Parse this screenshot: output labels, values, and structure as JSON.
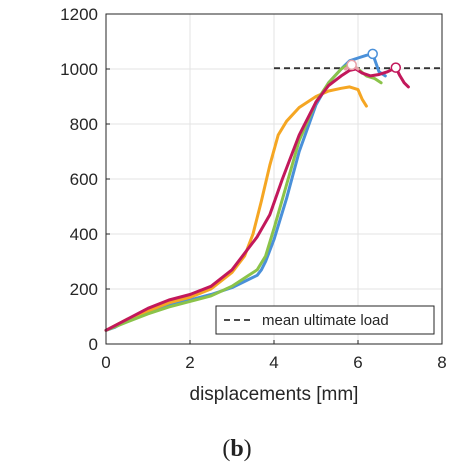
{
  "chart_data": {
    "type": "line",
    "xlabel": "displacements [mm]",
    "ylabel": "",
    "xlim": [
      0,
      8
    ],
    "ylim": [
      0,
      1200
    ],
    "xticks": [
      0,
      2,
      4,
      6,
      8
    ],
    "yticks": [
      0,
      200,
      400,
      600,
      800,
      1000,
      1200
    ],
    "grid": true,
    "legend": {
      "placement": "bottom-right",
      "entries": [
        "mean ultimate load"
      ]
    },
    "mean_ultimate_load": {
      "value": 1003,
      "x_start": 4.0,
      "x_end": 8.0,
      "color": "#333333"
    },
    "series": [
      {
        "color": "#4a90d9",
        "x": [
          0,
          0.2,
          0.5,
          1.0,
          1.5,
          2.0,
          2.5,
          3.0,
          3.4,
          3.6,
          3.7,
          3.8,
          4.0,
          4.3,
          4.6,
          5.0,
          5.3,
          5.6,
          5.8,
          6.0,
          6.2,
          6.35,
          6.5,
          6.65
        ],
        "y": [
          50,
          60,
          85,
          115,
          140,
          160,
          180,
          205,
          235,
          250,
          270,
          300,
          380,
          530,
          700,
          870,
          950,
          1000,
          1030,
          1040,
          1050,
          1055,
          990,
          975
        ],
        "end_marker": true
      },
      {
        "color": "#f5a623",
        "x": [
          0,
          0.5,
          1.0,
          1.5,
          2.0,
          2.5,
          3.0,
          3.3,
          3.5,
          3.7,
          3.9,
          4.1,
          4.3,
          4.6,
          5.0,
          5.3,
          5.6,
          5.8,
          6.0,
          6.1,
          6.2
        ],
        "y": [
          50,
          90,
          120,
          150,
          170,
          200,
          260,
          320,
          400,
          520,
          650,
          760,
          810,
          860,
          900,
          920,
          930,
          935,
          925,
          890,
          865
        ]
      },
      {
        "color": "#8bc34a",
        "x": [
          0,
          0.5,
          1.0,
          1.5,
          2.0,
          2.5,
          3.0,
          3.4,
          3.6,
          3.8,
          4.0,
          4.3,
          4.6,
          5.0,
          5.3,
          5.6,
          5.8,
          6.0,
          6.2,
          6.4,
          6.55
        ],
        "y": [
          50,
          80,
          110,
          135,
          155,
          175,
          210,
          250,
          270,
          320,
          420,
          580,
          740,
          880,
          950,
          1000,
          1020,
          1000,
          975,
          965,
          950
        ]
      },
      {
        "color": "#c2185b",
        "x": [
          0,
          0.5,
          1.0,
          1.5,
          2.0,
          2.5,
          3.0,
          3.3,
          3.6,
          3.9,
          4.2,
          4.6,
          5.0,
          5.3,
          5.6,
          5.8,
          5.95,
          6.1,
          6.3,
          6.5,
          6.7,
          6.9,
          7.0,
          7.1,
          7.2
        ],
        "y": [
          50,
          90,
          130,
          160,
          180,
          210,
          270,
          330,
          390,
          470,
          600,
          760,
          880,
          940,
          975,
          995,
          1000,
          985,
          975,
          980,
          990,
          1005,
          975,
          950,
          935
        ],
        "end_marker": true
      },
      {
        "color": "#e8a0a8",
        "x": [
          5.7,
          5.85,
          6.0
        ],
        "y": [
          1000,
          1015,
          1000
        ],
        "end_marker": true
      }
    ]
  },
  "caption": {
    "open": "(",
    "letter": "b",
    "close": ")"
  }
}
